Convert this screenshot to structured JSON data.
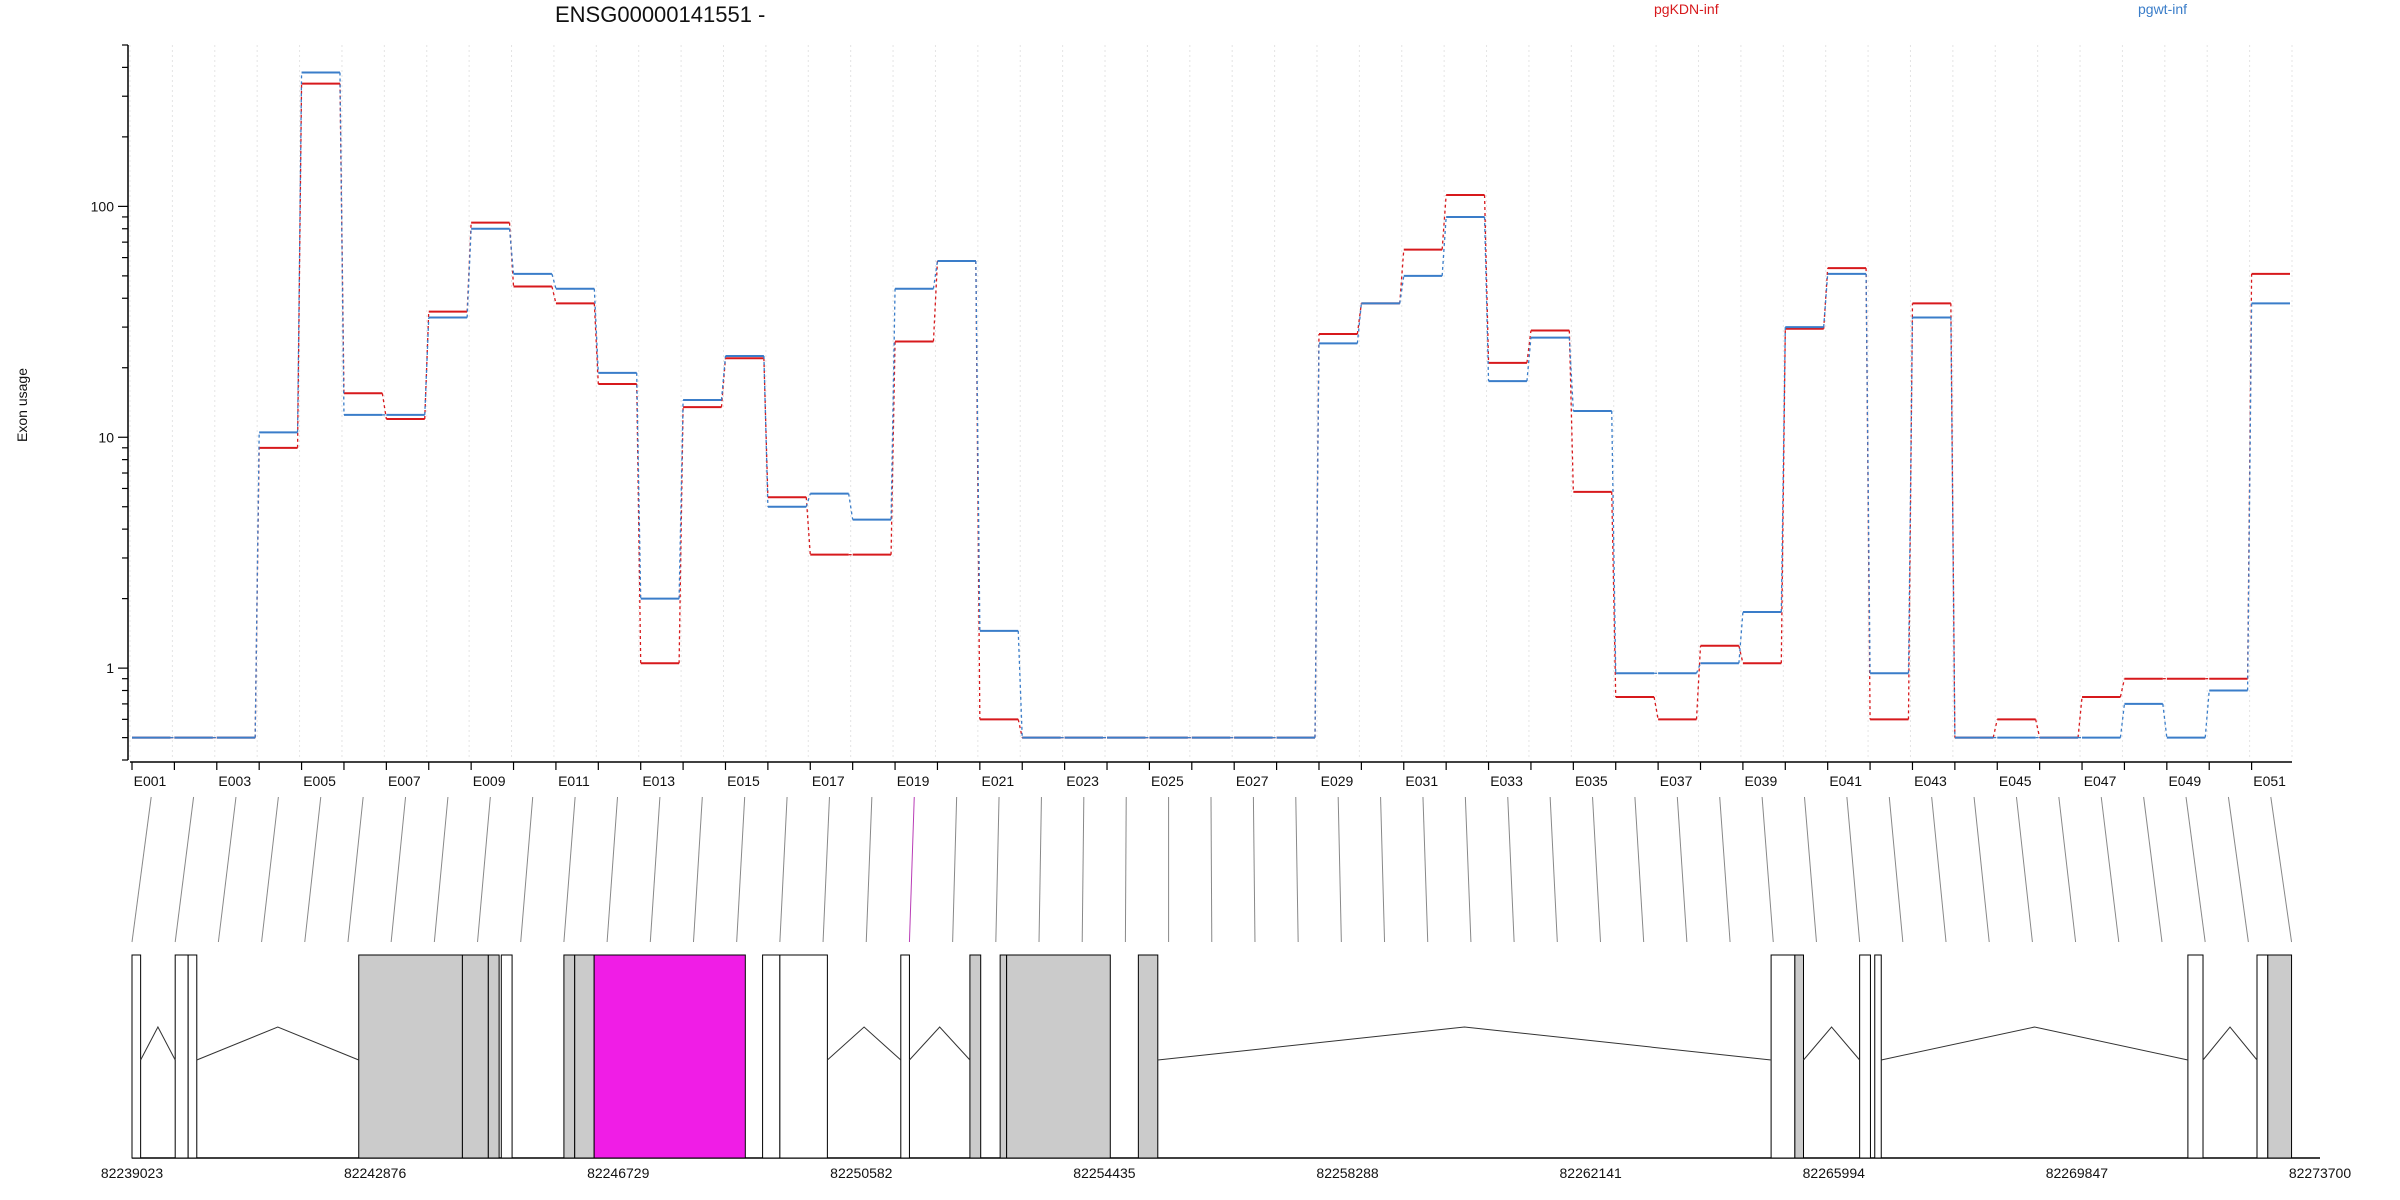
{
  "chart_data": {
    "type": "line",
    "title": "ENSG00000141551 -",
    "xlabel": "",
    "ylabel": "Exon usage",
    "y_scale": "log",
    "ylim": [
      0.4,
      500
    ],
    "y_ticks": [
      1,
      10,
      100
    ],
    "y_tick_labels": [
      "1",
      "10",
      "100"
    ],
    "grid": "vertical dotted",
    "legend_position": "top-right",
    "colors": {
      "pgKDN-inf": "#d7191c",
      "pgwt-inf": "#3a7dc9",
      "highlight": "#f01de6",
      "exon_fill": "#cbcbcb",
      "axis": "#000000"
    },
    "categories": [
      "E001",
      "E002",
      "E003",
      "E004",
      "E005",
      "E006",
      "E007",
      "E008",
      "E009",
      "E010",
      "E011",
      "E012",
      "E013",
      "E014",
      "E015",
      "E016",
      "E017",
      "E018",
      "E019",
      "E020",
      "E021",
      "E022",
      "E023",
      "E024",
      "E025",
      "E026",
      "E027",
      "E028",
      "E029",
      "E030",
      "E031",
      "E032",
      "E033",
      "E034",
      "E035",
      "E036",
      "E037",
      "E038",
      "E039",
      "E040",
      "E041",
      "E042",
      "E043",
      "E044",
      "E045",
      "E046",
      "E047",
      "E048",
      "E049",
      "E050",
      "E051"
    ],
    "x_tick_labels": [
      "E001",
      "E003",
      "E005",
      "E007",
      "E009",
      "E011",
      "E013",
      "E015",
      "E017",
      "E019",
      "E021",
      "E023",
      "E025",
      "E027",
      "E029",
      "E031",
      "E033",
      "E035",
      "E037",
      "E039",
      "E041",
      "E043",
      "E045",
      "E047",
      "E049",
      "E051"
    ],
    "series": [
      {
        "name": "pgKDN-inf",
        "values": [
          0.5,
          0.5,
          0.5,
          9,
          340,
          15.5,
          12,
          35,
          85,
          45,
          38,
          17,
          1.05,
          13.5,
          22,
          5.5,
          3.1,
          3.1,
          26,
          58,
          0.6,
          0.5,
          0.5,
          0.5,
          0.5,
          0.5,
          0.5,
          0.5,
          28,
          38,
          65,
          112,
          21,
          29,
          5.8,
          0.75,
          0.6,
          1.25,
          1.05,
          29.5,
          54,
          0.6,
          38,
          0.5,
          0.6,
          0.5,
          0.75,
          0.9,
          0.9,
          0.9,
          51
        ]
      },
      {
        "name": "pgwt-inf",
        "values": [
          0.5,
          0.5,
          0.5,
          10.5,
          380,
          12.5,
          12.5,
          33,
          80,
          51,
          44,
          19,
          2,
          14.5,
          22.5,
          5,
          5.7,
          4.4,
          44,
          58,
          1.45,
          0.5,
          0.5,
          0.5,
          0.5,
          0.5,
          0.5,
          0.5,
          25.5,
          38,
          50,
          90,
          17.5,
          27,
          13,
          0.95,
          0.95,
          1.05,
          1.75,
          30,
          51,
          0.95,
          33,
          0.5,
          0.5,
          0.5,
          0.5,
          0.7,
          0.5,
          0.8,
          38
        ]
      }
    ],
    "genomic_axis": {
      "range": [
        82239023,
        82273700
      ],
      "tick_labels": [
        "82239023",
        "82242876",
        "82246729",
        "82250582",
        "82254435",
        "82258288",
        "82262141",
        "82265994",
        "82269847",
        "82273700"
      ]
    }
  }
}
